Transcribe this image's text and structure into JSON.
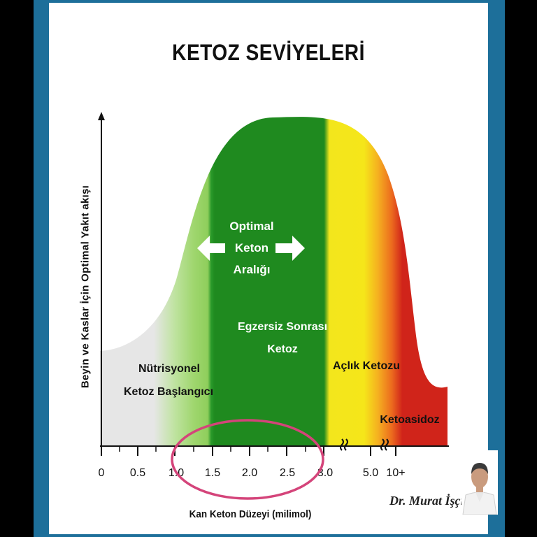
{
  "chart_data": {
    "type": "area",
    "title": "KETOZ SEVİYELERİ",
    "xlabel": "Kan Keton Düzeyi (milimol)",
    "ylabel": "Beyin ve Kaslar İçin Optimal Yakıt akışı",
    "x_ticks": [
      "0",
      "0.5",
      "1.0",
      "1.5",
      "2.0",
      "2.5",
      "3.0",
      "5.0",
      "10+"
    ],
    "zones": [
      {
        "label": "Nütrisyonel Ketoz Başlangıcı",
        "from": "0.5",
        "to": "1.5",
        "color": "#8fce5c"
      },
      {
        "label": "Optimal Keton Aralığı",
        "from": "1.5",
        "to": "3.0",
        "color": "#1f8a1f"
      },
      {
        "label": "Egzersiz Sonrası Ketoz",
        "from": "1.5",
        "to": "3.0",
        "color": "#1f8a1f"
      },
      {
        "label": "Açlık Ketozu",
        "from": "3.0",
        "to": "5.0",
        "color": "#f5e61a"
      },
      {
        "label": "Ketoasidoz",
        "from": "5.0",
        "to": "10+",
        "color": "#d0241a"
      }
    ],
    "highlight": {
      "from": "1.0",
      "to": "3.0",
      "color": "#d4447a"
    },
    "colors": {
      "gray_zone": "#e6e6e6",
      "light_green": "#8fce5c",
      "dark_green": "#1f8a1f",
      "yellow": "#f5e61a",
      "orange": "#f0a020",
      "red": "#d0241a"
    }
  },
  "labels": {
    "optimal_line1": "Optimal",
    "optimal_line2": "Keton",
    "optimal_line3": "Aralığı",
    "exercise_line1": "Egzersiz Sonrası",
    "exercise_line2": "Ketoz",
    "nutritional_line1": "Nütrisyonel",
    "nutritional_line2": "Ketoz Başlangıcı",
    "fasting": "Açlık Ketozu",
    "ketoacidosis": "Ketoasidoz"
  },
  "signature": "Dr. Murat İşçi",
  "icons": {
    "left_arrow": "arrow-left-icon",
    "right_arrow": "arrow-right-icon",
    "axis_break": "axis-break-icon"
  }
}
